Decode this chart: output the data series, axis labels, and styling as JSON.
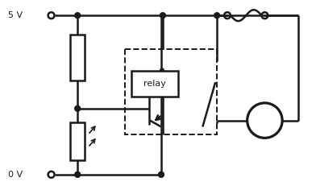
{
  "bg_color": "#ffffff",
  "line_color": "#1a1a1a",
  "line_width": 1.8,
  "fig_width": 3.92,
  "fig_height": 2.36,
  "dpi": 100,
  "label_5v": "5 V",
  "label_0v": "0 V",
  "relay_text": "relay",
  "ac_symbol": "~"
}
